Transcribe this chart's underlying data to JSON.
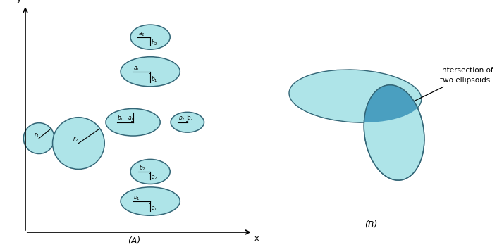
{
  "fig_width": 7.05,
  "fig_height": 3.51,
  "dpi": 100,
  "bg_color": "#ffffff",
  "ellipse_fill": "#aee4e8",
  "ellipse_edge": "#336677",
  "intersect_fill": "#4a9fc0",
  "label_A": "(A)",
  "label_B": "(B)",
  "annotation_text": "Intersection of\ntwo ellipsoids",
  "panel_A_xlim": [
    0,
    10
  ],
  "panel_A_ylim": [
    0,
    10
  ],
  "panel_B_xlim": [
    0,
    10
  ],
  "panel_B_ylim": [
    0,
    10
  ],
  "axis_x_label": "x",
  "axis_y_label": "y"
}
